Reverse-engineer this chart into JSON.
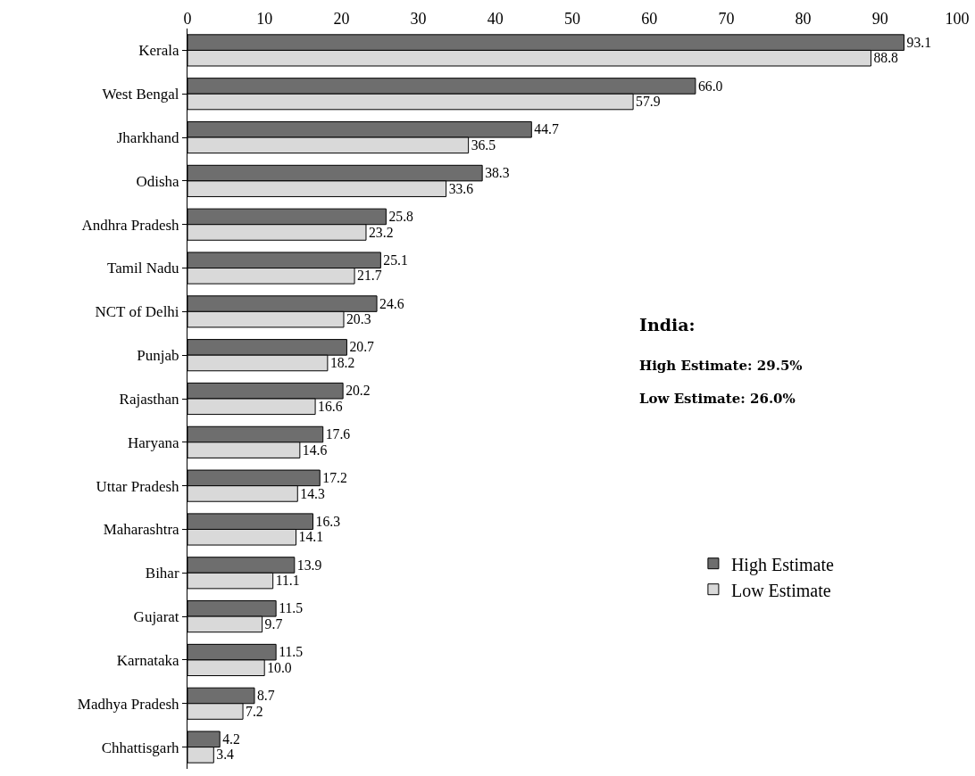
{
  "chart_data": {
    "type": "bar",
    "orientation": "horizontal",
    "categories": [
      "Kerala",
      "West Bengal",
      "Jharkhand",
      "Odisha",
      "Andhra Pradesh",
      "Tamil Nadu",
      "NCT of Delhi",
      "Punjab",
      "Rajasthan",
      "Haryana",
      "Uttar Pradesh",
      "Maharashtra",
      "Bihar",
      "Gujarat",
      "Karnataka",
      "Madhya Pradesh",
      "Chhattisgarh"
    ],
    "series": [
      {
        "name": "High Estimate",
        "color": "#6e6e6e",
        "values": [
          93.1,
          66.0,
          44.7,
          38.3,
          25.8,
          25.1,
          24.6,
          20.7,
          20.2,
          17.6,
          17.2,
          16.3,
          13.9,
          11.5,
          11.5,
          8.7,
          4.2
        ],
        "value_labels": [
          "93.1",
          "66.0",
          "44.7",
          "38.3",
          "25.8",
          "25.1",
          "24.6",
          "20.7",
          "20.2",
          "17.6",
          "17.2",
          "16.3",
          "13.9",
          "11.5",
          "11.5",
          "8.7",
          "4.2"
        ]
      },
      {
        "name": "Low Estimate",
        "color": "#d9d9d9",
        "values": [
          88.8,
          57.9,
          36.5,
          33.6,
          23.2,
          21.7,
          20.3,
          18.2,
          16.6,
          14.6,
          14.3,
          14.1,
          11.1,
          9.7,
          10.0,
          7.2,
          3.4
        ],
        "value_labels": [
          "88.8",
          "57.9",
          "36.5",
          "33.6",
          "23.2",
          "21.7",
          "20.3",
          "18.2",
          "16.6",
          "14.6",
          "14.3",
          "14.1",
          "11.1",
          "9.7",
          "10.0",
          "7.2",
          "3.4"
        ]
      }
    ],
    "xlim": [
      0,
      100
    ],
    "xticks": [
      0,
      10,
      20,
      30,
      40,
      50,
      60,
      70,
      80,
      90,
      100
    ],
    "grid": false,
    "legend": "right",
    "annotations": [
      "India:",
      "High Estimate: 29.5%",
      "Low Estimate: 26.0%"
    ]
  }
}
